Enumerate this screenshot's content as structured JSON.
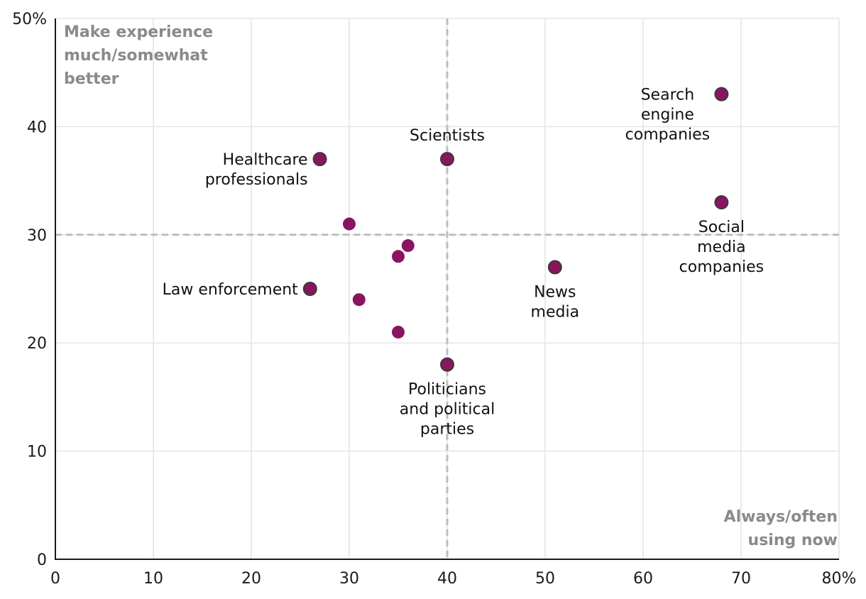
{
  "colors": {
    "point_fill": "#8b1460",
    "point_stroke_labeled": "#3a3a3a",
    "grid": "#e4e4e4",
    "axis": "#1a1a1a",
    "reference_line": "#bdbdbd",
    "corner_text": "#8a8a8a"
  },
  "chart_data": {
    "type": "scatter",
    "title": "",
    "xlabel": "Always/often using now",
    "ylabel": "Make experience much/somewhat better",
    "xlim": [
      0,
      80
    ],
    "ylim": [
      0,
      50
    ],
    "x_ticks": [
      0,
      10,
      20,
      30,
      40,
      50,
      60,
      70,
      80
    ],
    "x_tick_labels": [
      "0",
      "10",
      "20",
      "30",
      "40",
      "50",
      "60",
      "70",
      "80%"
    ],
    "y_ticks": [
      0,
      10,
      20,
      30,
      40,
      50
    ],
    "y_tick_labels": [
      "0",
      "10",
      "20",
      "30",
      "40",
      "50%"
    ],
    "grid": true,
    "reference_lines": {
      "x": 40,
      "y": 30
    },
    "corner_labels": {
      "top_left": [
        "Make experience",
        "much/somewhat",
        "better"
      ],
      "bottom_right": [
        "Always/often",
        "using now"
      ]
    },
    "points": [
      {
        "x": 68,
        "y": 43,
        "label": [
          "Search",
          "engine",
          "companies"
        ],
        "label_pos": "left-below",
        "outlined": true
      },
      {
        "x": 40,
        "y": 37,
        "label": [
          "Scientists"
        ],
        "label_pos": "above",
        "outlined": true
      },
      {
        "x": 27,
        "y": 37,
        "label": [
          "Healthcare",
          "professionals"
        ],
        "label_pos": "left",
        "outlined": true
      },
      {
        "x": 68,
        "y": 33,
        "label": [
          "Social",
          "media",
          "companies"
        ],
        "label_pos": "below",
        "outlined": true
      },
      {
        "x": 30,
        "y": 31,
        "label": [],
        "outlined": false
      },
      {
        "x": 36,
        "y": 29,
        "label": [],
        "outlined": false
      },
      {
        "x": 35,
        "y": 28,
        "label": [],
        "outlined": false
      },
      {
        "x": 51,
        "y": 27,
        "label": [
          "News",
          "media"
        ],
        "label_pos": "below",
        "outlined": true
      },
      {
        "x": 26,
        "y": 25,
        "label": [
          "Law enforcement"
        ],
        "label_pos": "left",
        "outlined": true
      },
      {
        "x": 31,
        "y": 24,
        "label": [],
        "outlined": false
      },
      {
        "x": 35,
        "y": 21,
        "label": [],
        "outlined": false
      },
      {
        "x": 40,
        "y": 18,
        "label": [
          "Politicians",
          "and political",
          "parties"
        ],
        "label_pos": "below",
        "outlined": true
      }
    ]
  }
}
